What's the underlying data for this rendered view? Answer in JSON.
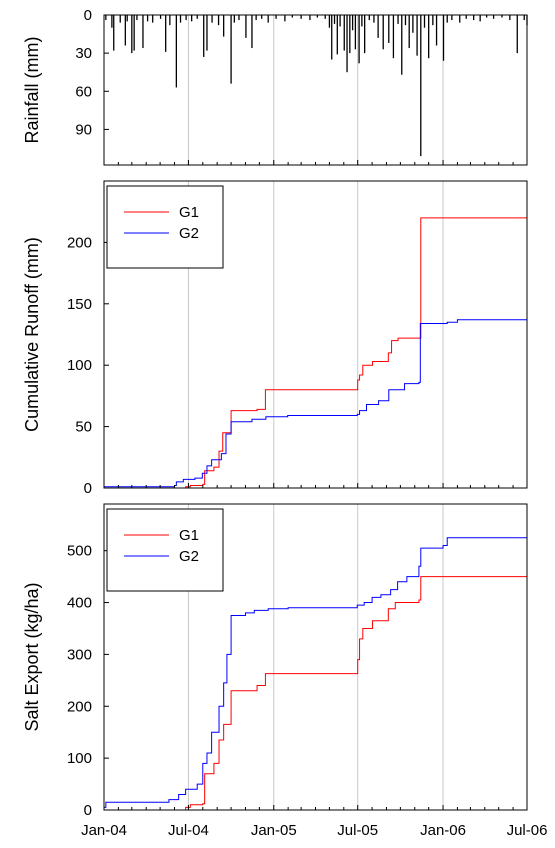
{
  "chart_data": [
    {
      "type": "bar",
      "ylabel": "Rainfall (mm)",
      "ylim": [
        0,
        118
      ],
      "yaxis_inverted": true,
      "yticks": [
        "0",
        "30",
        "60",
        "90"
      ],
      "ytick_values": [
        0,
        30,
        60,
        90
      ],
      "x_date_range": [
        "2004-01-01",
        "2006-07-01"
      ],
      "grid": "vertical lines at x ticks",
      "events": [
        {
          "date": "2004-01-05",
          "rain": 4
        },
        {
          "date": "2004-01-18",
          "rain": 10
        },
        {
          "date": "2004-01-22",
          "rain": 28
        },
        {
          "date": "2004-02-05",
          "rain": 6
        },
        {
          "date": "2004-02-16",
          "rain": 24
        },
        {
          "date": "2004-02-20",
          "rain": 5
        },
        {
          "date": "2004-03-01",
          "rain": 30
        },
        {
          "date": "2004-03-06",
          "rain": 28
        },
        {
          "date": "2004-03-12",
          "rain": 4
        },
        {
          "date": "2004-03-25",
          "rain": 26
        },
        {
          "date": "2004-04-04",
          "rain": 5
        },
        {
          "date": "2004-04-15",
          "rain": 6
        },
        {
          "date": "2004-05-02",
          "rain": 3
        },
        {
          "date": "2004-05-13",
          "rain": 29
        },
        {
          "date": "2004-05-22",
          "rain": 8
        },
        {
          "date": "2004-06-05",
          "rain": 57
        },
        {
          "date": "2004-06-14",
          "rain": 6
        },
        {
          "date": "2004-06-26",
          "rain": 4
        },
        {
          "date": "2004-07-08",
          "rain": 5
        },
        {
          "date": "2004-07-20",
          "rain": 3
        },
        {
          "date": "2004-08-03",
          "rain": 33
        },
        {
          "date": "2004-08-10",
          "rain": 28
        },
        {
          "date": "2004-08-21",
          "rain": 6
        },
        {
          "date": "2004-09-04",
          "rain": 8
        },
        {
          "date": "2004-09-15",
          "rain": 17
        },
        {
          "date": "2004-10-01",
          "rain": 54
        },
        {
          "date": "2004-10-08",
          "rain": 6
        },
        {
          "date": "2004-10-18",
          "rain": 4
        },
        {
          "date": "2004-11-02",
          "rain": 18
        },
        {
          "date": "2004-11-15",
          "rain": 26
        },
        {
          "date": "2004-11-24",
          "rain": 4
        },
        {
          "date": "2004-12-06",
          "rain": 3
        },
        {
          "date": "2004-12-20",
          "rain": 6
        },
        {
          "date": "2005-01-06",
          "rain": 3
        },
        {
          "date": "2005-01-25",
          "rain": 5
        },
        {
          "date": "2005-02-10",
          "rain": 2
        },
        {
          "date": "2005-03-01",
          "rain": 3
        },
        {
          "date": "2005-03-20",
          "rain": 4
        },
        {
          "date": "2005-04-05",
          "rain": 2
        },
        {
          "date": "2005-04-22",
          "rain": 3
        },
        {
          "date": "2005-05-01",
          "rain": 10
        },
        {
          "date": "2005-05-06",
          "rain": 35
        },
        {
          "date": "2005-05-12",
          "rain": 7
        },
        {
          "date": "2005-05-18",
          "rain": 31
        },
        {
          "date": "2005-05-24",
          "rain": 9
        },
        {
          "date": "2005-06-02",
          "rain": 28
        },
        {
          "date": "2005-06-08",
          "rain": 45
        },
        {
          "date": "2005-06-14",
          "rain": 30
        },
        {
          "date": "2005-06-20",
          "rain": 12
        },
        {
          "date": "2005-06-26",
          "rain": 27
        },
        {
          "date": "2005-07-04",
          "rain": 38
        },
        {
          "date": "2005-07-10",
          "rain": 9
        },
        {
          "date": "2005-07-16",
          "rain": 30
        },
        {
          "date": "2005-07-26",
          "rain": 4
        },
        {
          "date": "2005-08-05",
          "rain": 6
        },
        {
          "date": "2005-08-14",
          "rain": 18
        },
        {
          "date": "2005-08-25",
          "rain": 27
        },
        {
          "date": "2005-09-06",
          "rain": 22
        },
        {
          "date": "2005-09-16",
          "rain": 34
        },
        {
          "date": "2005-09-26",
          "rain": 7
        },
        {
          "date": "2005-10-04",
          "rain": 47
        },
        {
          "date": "2005-10-12",
          "rain": 8
        },
        {
          "date": "2005-10-20",
          "rain": 26
        },
        {
          "date": "2005-10-28",
          "rain": 14
        },
        {
          "date": "2005-11-06",
          "rain": 32
        },
        {
          "date": "2005-11-14",
          "rain": 111
        },
        {
          "date": "2005-11-22",
          "rain": 10
        },
        {
          "date": "2005-12-01",
          "rain": 34
        },
        {
          "date": "2005-12-10",
          "rain": 8
        },
        {
          "date": "2005-12-18",
          "rain": 24
        },
        {
          "date": "2006-01-02",
          "rain": 36
        },
        {
          "date": "2006-01-10",
          "rain": 6
        },
        {
          "date": "2006-01-20",
          "rain": 4
        },
        {
          "date": "2006-02-06",
          "rain": 6
        },
        {
          "date": "2006-02-20",
          "rain": 3
        },
        {
          "date": "2006-03-08",
          "rain": 4
        },
        {
          "date": "2006-03-22",
          "rain": 5
        },
        {
          "date": "2006-04-05",
          "rain": 2
        },
        {
          "date": "2006-04-20",
          "rain": 3
        },
        {
          "date": "2006-05-08",
          "rain": 2
        },
        {
          "date": "2006-05-25",
          "rain": 4
        },
        {
          "date": "2006-06-10",
          "rain": 30
        },
        {
          "date": "2006-06-25",
          "rain": 4
        },
        {
          "date": "2006-07-01",
          "rain": 8
        }
      ]
    },
    {
      "type": "line",
      "step": true,
      "ylabel": "Cumulative Runoff (mm)",
      "ylim": [
        0,
        250
      ],
      "yticks": [
        "0",
        "50",
        "100",
        "150",
        "200"
      ],
      "ytick_values": [
        0,
        50,
        100,
        150,
        200
      ],
      "x_date_range": [
        "2004-01-01",
        "2006-07-01"
      ],
      "legend_position": "top-left",
      "grid": "vertical lines at x ticks",
      "series": [
        {
          "name": "G1",
          "color": "#ff0000",
          "points": [
            [
              "2004-01-01",
              0
            ],
            [
              "2004-06-25",
              1
            ],
            [
              "2004-07-05",
              2
            ],
            [
              "2004-08-01",
              3
            ],
            [
              "2004-08-05",
              14
            ],
            [
              "2004-08-25",
              17
            ],
            [
              "2004-09-05",
              30
            ],
            [
              "2004-09-13",
              45
            ],
            [
              "2004-10-01",
              63
            ],
            [
              "2004-11-26",
              64
            ],
            [
              "2004-12-14",
              80
            ],
            [
              "2005-06-30",
              80
            ],
            [
              "2005-07-01",
              88
            ],
            [
              "2005-07-05",
              92
            ],
            [
              "2005-07-12",
              100
            ],
            [
              "2005-08-02",
              103
            ],
            [
              "2005-09-05",
              110
            ],
            [
              "2005-09-12",
              120
            ],
            [
              "2005-09-26",
              122
            ],
            [
              "2005-11-10",
              122
            ],
            [
              "2005-11-14",
              220
            ],
            [
              "2006-07-01",
              220
            ]
          ]
        },
        {
          "name": "G2",
          "color": "#0000ff",
          "points": [
            [
              "2004-01-01",
              1
            ],
            [
              "2004-06-01",
              2
            ],
            [
              "2004-06-05",
              5
            ],
            [
              "2004-06-20",
              7
            ],
            [
              "2004-07-15",
              8
            ],
            [
              "2004-07-31",
              12
            ],
            [
              "2004-08-10",
              18
            ],
            [
              "2004-08-20",
              23
            ],
            [
              "2004-09-10",
              28
            ],
            [
              "2004-09-20",
              44
            ],
            [
              "2004-10-01",
              54
            ],
            [
              "2004-11-15",
              56
            ],
            [
              "2004-12-15",
              58
            ],
            [
              "2005-01-31",
              59
            ],
            [
              "2005-06-30",
              60
            ],
            [
              "2005-07-05",
              63
            ],
            [
              "2005-07-20",
              68
            ],
            [
              "2005-08-15",
              71
            ],
            [
              "2005-09-06",
              80
            ],
            [
              "2005-10-10",
              85
            ],
            [
              "2005-11-10",
              86
            ],
            [
              "2005-11-13",
              134
            ],
            [
              "2006-01-10",
              135
            ],
            [
              "2006-02-01",
              137
            ],
            [
              "2006-07-01",
              137
            ]
          ]
        }
      ]
    },
    {
      "type": "line",
      "step": true,
      "ylabel": "Salt Export (kg/ha)",
      "ylim": [
        0,
        590
      ],
      "yticks": [
        "0",
        "100",
        "200",
        "300",
        "400",
        "500"
      ],
      "ytick_values": [
        0,
        100,
        200,
        300,
        400,
        500
      ],
      "x_date_range": [
        "2004-01-01",
        "2006-07-01"
      ],
      "xticks": [
        "Jan-04",
        "Jul-04",
        "Jan-05",
        "Jul-05",
        "Jan-06",
        "Jul-06"
      ],
      "xtick_dates": [
        "2004-01-01",
        "2004-07-01",
        "2005-01-01",
        "2005-07-01",
        "2006-01-01",
        "2006-07-01"
      ],
      "legend_position": "top-left",
      "grid": "vertical lines at x ticks",
      "series": [
        {
          "name": "G1",
          "color": "#ff0000",
          "points": [
            [
              "2004-01-01",
              0
            ],
            [
              "2004-06-25",
              5
            ],
            [
              "2004-07-05",
              10
            ],
            [
              "2004-08-01",
              12
            ],
            [
              "2004-08-05",
              70
            ],
            [
              "2004-08-25",
              90
            ],
            [
              "2004-09-05",
              135
            ],
            [
              "2004-09-15",
              165
            ],
            [
              "2004-10-01",
              230
            ],
            [
              "2004-11-26",
              240
            ],
            [
              "2004-12-14",
              263
            ],
            [
              "2005-06-30",
              263
            ],
            [
              "2005-07-01",
              290
            ],
            [
              "2005-07-05",
              330
            ],
            [
              "2005-07-12",
              350
            ],
            [
              "2005-08-02",
              365
            ],
            [
              "2005-09-05",
              388
            ],
            [
              "2005-09-20",
              400
            ],
            [
              "2005-11-10",
              405
            ],
            [
              "2005-11-14",
              450
            ],
            [
              "2006-07-01",
              450
            ]
          ]
        },
        {
          "name": "G2",
          "color": "#0000ff",
          "points": [
            [
              "2004-01-01",
              5
            ],
            [
              "2004-01-05",
              15
            ],
            [
              "2004-05-10",
              15
            ],
            [
              "2004-05-20",
              20
            ],
            [
              "2004-06-10",
              30
            ],
            [
              "2004-06-25",
              40
            ],
            [
              "2004-07-20",
              50
            ],
            [
              "2004-08-01",
              90
            ],
            [
              "2004-08-10",
              110
            ],
            [
              "2004-08-20",
              150
            ],
            [
              "2004-09-05",
              200
            ],
            [
              "2004-09-15",
              245
            ],
            [
              "2004-09-22",
              300
            ],
            [
              "2004-10-01",
              375
            ],
            [
              "2004-11-01",
              380
            ],
            [
              "2004-11-20",
              385
            ],
            [
              "2004-12-20",
              388
            ],
            [
              "2005-02-01",
              390
            ],
            [
              "2005-06-30",
              395
            ],
            [
              "2005-07-15",
              400
            ],
            [
              "2005-08-01",
              410
            ],
            [
              "2005-08-20",
              415
            ],
            [
              "2005-09-10",
              425
            ],
            [
              "2005-09-25",
              440
            ],
            [
              "2005-10-15",
              450
            ],
            [
              "2005-11-10",
              470
            ],
            [
              "2005-11-14",
              505
            ],
            [
              "2006-01-01",
              510
            ],
            [
              "2006-01-10",
              525
            ],
            [
              "2006-07-01",
              525
            ]
          ]
        }
      ]
    }
  ]
}
